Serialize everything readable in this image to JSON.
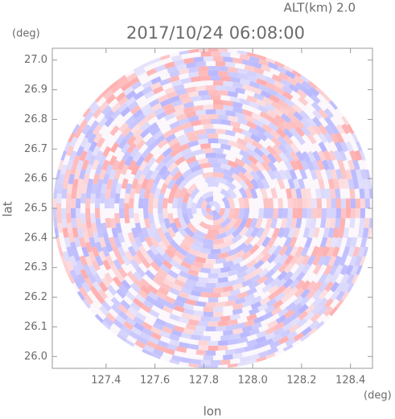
{
  "chart_data": {
    "type": "radar-ppi",
    "title": "2017/10/24 06:08:00",
    "annotation": "ALT(km) 2.0",
    "x_label": "lon",
    "y_label": "lat",
    "x_unit": "(deg)",
    "y_unit": "(deg)",
    "xlim": [
      127.18,
      128.49
    ],
    "ylim": [
      25.96,
      27.04
    ],
    "xticks": [
      127.4,
      127.6,
      127.8,
      {
        "value": 128,
        "label": "128.0"
      },
      128.2,
      128.4
    ],
    "yticks": [
      {
        "value": 26,
        "label": "26.0"
      },
      26.1,
      26.2,
      26.3,
      26.4,
      26.5,
      26.6,
      26.7,
      26.8,
      26.9,
      {
        "value": 27,
        "label": "27.0"
      }
    ],
    "positive_color": "#ff9f9f",
    "negative_color": "#a9a9ff"
  }
}
